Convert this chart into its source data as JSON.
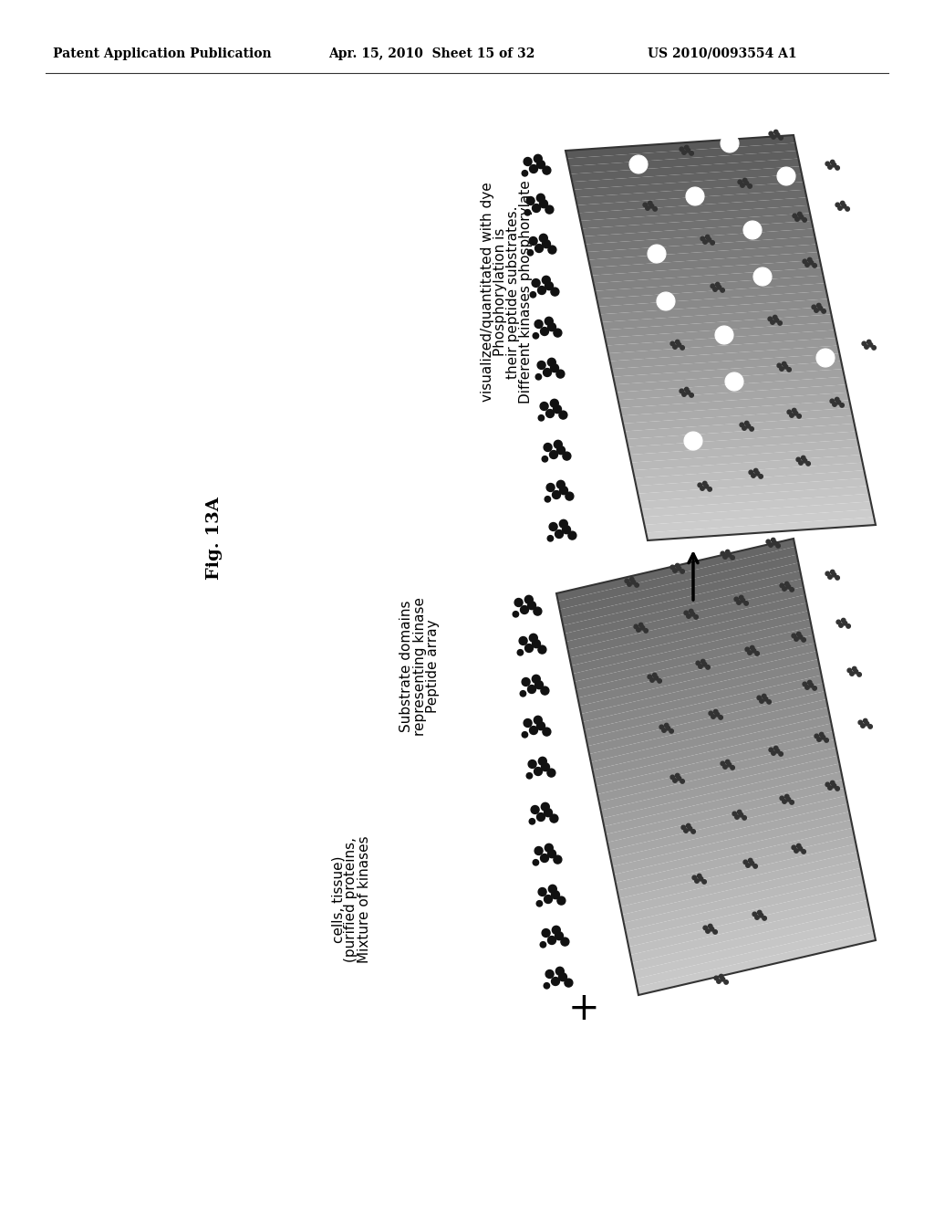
{
  "header_left": "Patent Application Publication",
  "header_center": "Apr. 15, 2010  Sheet 15 of 32",
  "header_right": "US 2010/0093554 A1",
  "fig_label": "Fig. 13A",
  "label1_line1": "Mixture of kinases",
  "label1_line2": "(purified proteins,",
  "label1_line3": "cells, tissue)",
  "label2_line1": "Peptide array",
  "label2_line2": "representing kinase",
  "label2_line3": "Substrate domains",
  "label3_line1": "Different kinases phosphorylate",
  "label3_line2": "their peptide substrates.",
  "label3_line3": "Phosphorylation is",
  "label3_line4": "visualized/quantitated with dye",
  "bg_color": "#ffffff",
  "text_color": "#000000",
  "header_fontsize": 10,
  "label_fontsize": 11,
  "figlabel_fontsize": 14
}
